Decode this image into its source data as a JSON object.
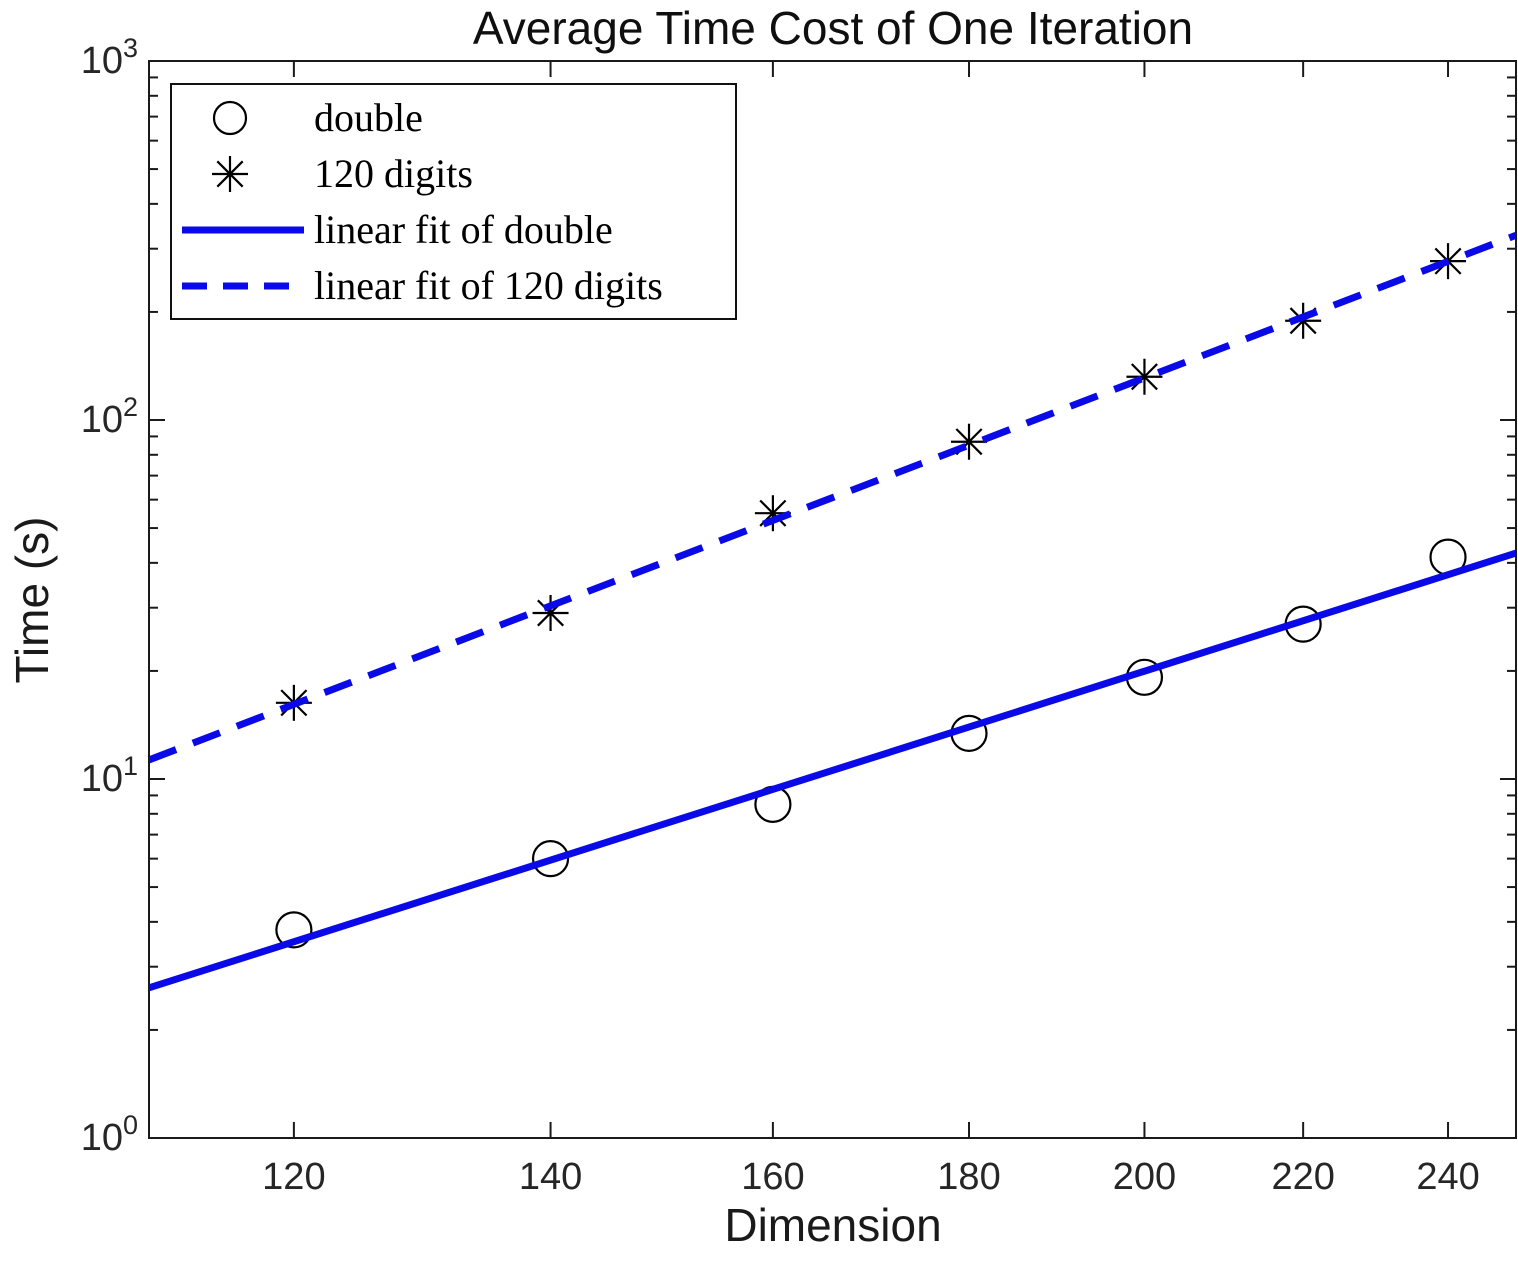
{
  "title": "Average Time Cost of One Iteration",
  "axes": {
    "xlabel": "Dimension",
    "ylabel": "Time (s)"
  },
  "colors": {
    "fit_line": "#0a0ae8",
    "marker": "#000000",
    "axis": "#1a1a1a",
    "tick_text": "#262626"
  },
  "chart_data": {
    "type": "scatter",
    "x_scale": "log",
    "y_scale": "log",
    "xlim": [
      110,
      250
    ],
    "ylim": [
      1,
      1000
    ],
    "x_ticks": [
      120,
      140,
      160,
      180,
      200,
      220,
      240
    ],
    "y_tick_base": "10",
    "y_tick_exponents": [
      0,
      1,
      2,
      3
    ],
    "grid": false,
    "title": "Average Time Cost of One Iteration",
    "xlabel": "Dimension",
    "ylabel": "Time (s)",
    "series": [
      {
        "name": "double",
        "kind": "scatter",
        "marker": "circle",
        "color": "#000000",
        "x": [
          120,
          140,
          160,
          180,
          200,
          220,
          240
        ],
        "y": [
          3.8,
          6.0,
          8.5,
          13.4,
          19.2,
          27,
          41.5
        ]
      },
      {
        "name": "120 digits",
        "kind": "scatter",
        "marker": "asterisk",
        "color": "#000000",
        "x": [
          120,
          140,
          160,
          180,
          200,
          220,
          240
        ],
        "y": [
          16.3,
          29,
          55,
          87,
          132,
          189,
          277
        ]
      },
      {
        "name": "linear fit of double",
        "kind": "line",
        "style": "solid",
        "color": "#0a0ae8",
        "x": [
          110,
          250
        ],
        "y": [
          2.62,
          42.6
        ]
      },
      {
        "name": "linear fit of 120 digits",
        "kind": "line",
        "style": "dashed",
        "color": "#0a0ae8",
        "x": [
          110,
          250
        ],
        "y": [
          11.3,
          327
        ]
      }
    ],
    "legend": {
      "position": "northwest",
      "entries": [
        {
          "label": "double",
          "symbol": "circle"
        },
        {
          "label": "120 digits",
          "symbol": "asterisk"
        },
        {
          "label": "linear fit of double",
          "symbol": "solid-line"
        },
        {
          "label": "linear fit of 120 digits",
          "symbol": "dashed-line"
        }
      ]
    }
  }
}
